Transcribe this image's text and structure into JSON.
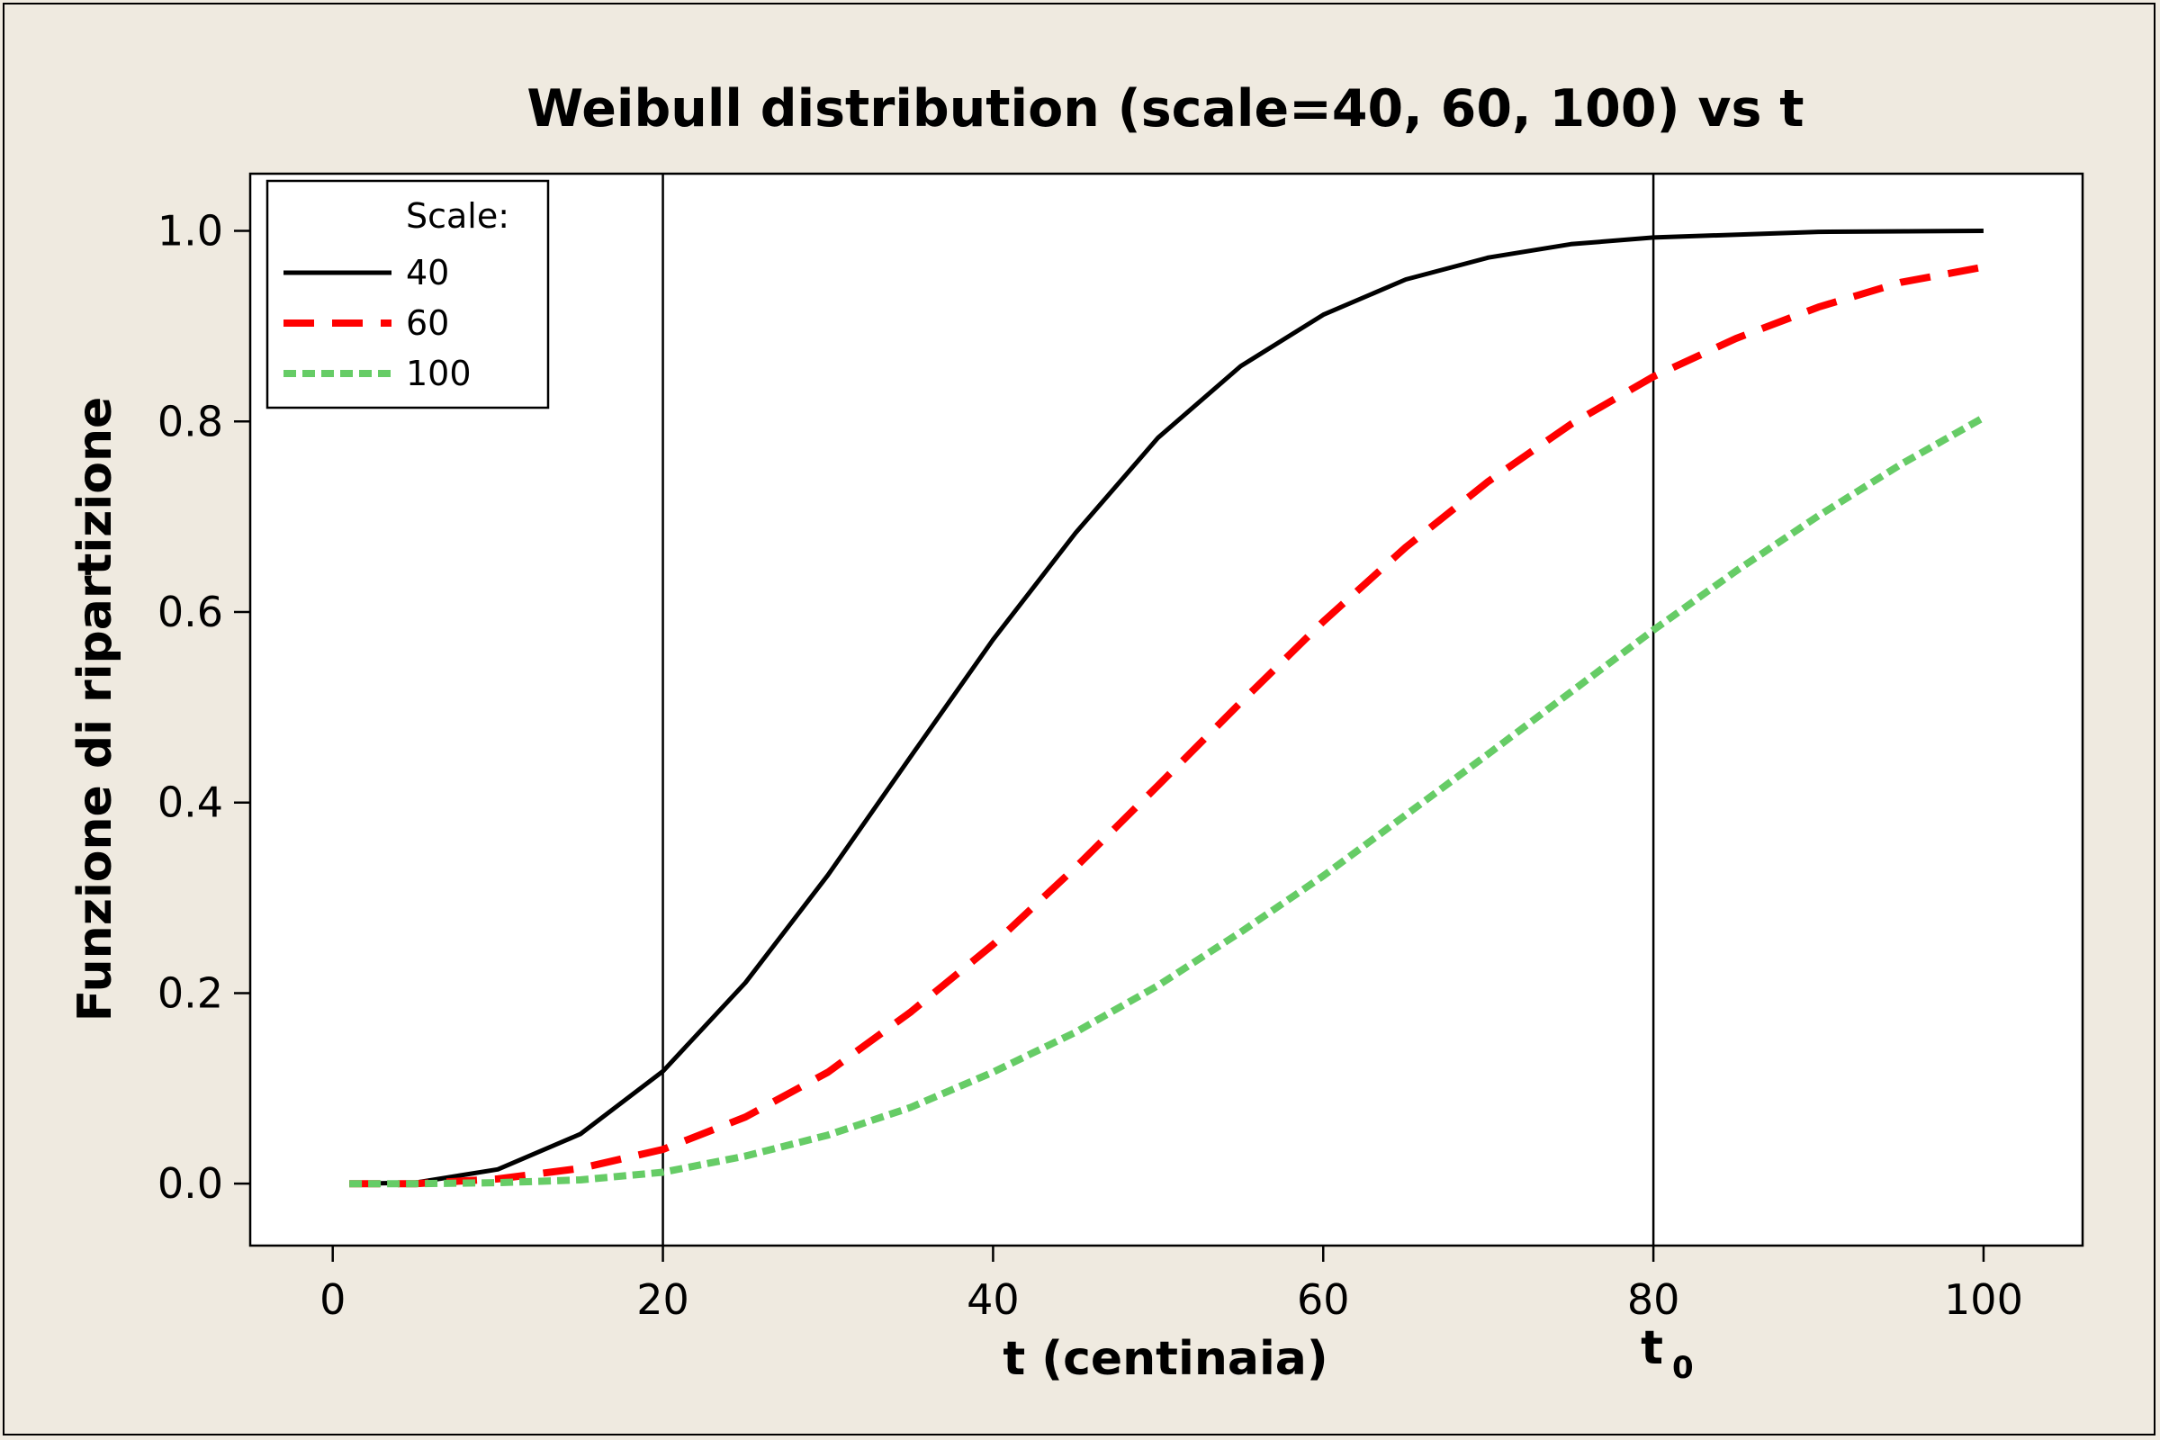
{
  "chart_data": {
    "type": "line",
    "title": "Weibull distribution (scale=40, 60, 100) vs t",
    "xlabel": "t (centinaia)",
    "ylabel": "Funzione di ripartizione",
    "xlim": [
      -5,
      106
    ],
    "ylim": [
      -0.065,
      1.06
    ],
    "x_ticks": [
      0,
      20,
      40,
      60,
      80,
      100
    ],
    "x_tick_labels": [
      "0",
      "20",
      "40",
      "60",
      "80",
      "100"
    ],
    "y_ticks": [
      0.0,
      0.2,
      0.4,
      0.6,
      0.8,
      1.0
    ],
    "y_tick_labels": [
      "0.0",
      "0.2",
      "0.4",
      "0.6",
      "0.8",
      "1.0"
    ],
    "grid": false,
    "reference_lines_x": [
      20,
      80
    ],
    "annotation": {
      "text": "t",
      "subscript": "0",
      "x": 80
    },
    "legend": {
      "title": "Scale:",
      "position": "top-left"
    },
    "series": [
      {
        "name": "40",
        "color": "#000000",
        "style": "solid",
        "x": [
          1,
          5,
          10,
          15,
          20,
          25,
          30,
          35,
          40,
          45,
          50,
          55,
          60,
          65,
          70,
          75,
          80,
          90,
          100
        ],
        "y": [
          0.0,
          0.001,
          0.015,
          0.052,
          0.118,
          0.211,
          0.324,
          0.448,
          0.571,
          0.683,
          0.783,
          0.858,
          0.912,
          0.949,
          0.972,
          0.986,
          0.993,
          0.999,
          1.0
        ]
      },
      {
        "name": "60",
        "color": "#ff0000",
        "style": "dashed",
        "x": [
          1,
          5,
          10,
          15,
          20,
          25,
          30,
          35,
          40,
          45,
          50,
          55,
          60,
          65,
          70,
          75,
          80,
          85,
          90,
          95,
          100
        ],
        "y": [
          0.0,
          0.0,
          0.005,
          0.016,
          0.036,
          0.07,
          0.117,
          0.18,
          0.251,
          0.332,
          0.418,
          0.505,
          0.59,
          0.668,
          0.737,
          0.797,
          0.847,
          0.887,
          0.92,
          0.946,
          0.962
        ]
      },
      {
        "name": "100",
        "color": "#66cc66",
        "style": "dotted",
        "x": [
          1,
          5,
          10,
          15,
          20,
          25,
          30,
          35,
          40,
          45,
          50,
          55,
          60,
          65,
          70,
          75,
          80,
          85,
          90,
          95,
          100
        ],
        "y": [
          0.0,
          0.0,
          0.001,
          0.004,
          0.012,
          0.029,
          0.051,
          0.08,
          0.117,
          0.159,
          0.208,
          0.264,
          0.323,
          0.387,
          0.451,
          0.516,
          0.581,
          0.643,
          0.701,
          0.755,
          0.804
        ]
      }
    ]
  }
}
